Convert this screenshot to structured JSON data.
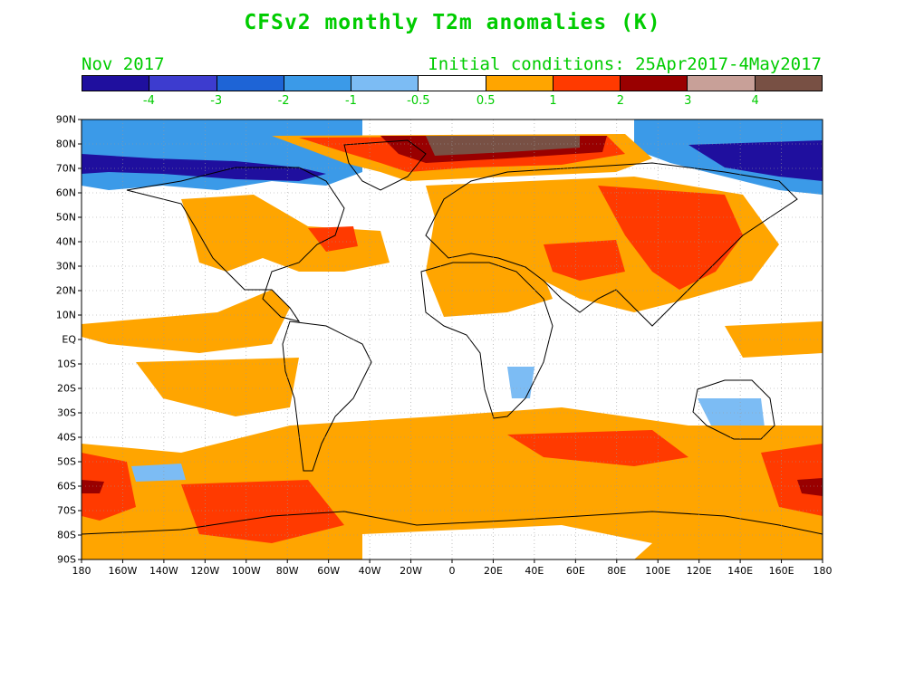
{
  "title": "CFSv2 monthly T2m anomalies (K)",
  "valid_month": "Nov 2017",
  "initial_conditions": "Initial conditions: 25Apr2017-4May2017",
  "colorbar": {
    "colors": [
      "#1f0f9e",
      "#3d3ccf",
      "#1e64d6",
      "#3b9ae8",
      "#7cbcf4",
      "#ffffff",
      "#ffa500",
      "#ff3a00",
      "#990000",
      "#c8a098",
      "#785044"
    ],
    "labels": [
      "-4",
      "-3",
      "-2",
      "-1",
      "-0.5",
      "0.5",
      "1",
      "2",
      "3",
      "4"
    ]
  },
  "lat_labels": [
    "90N",
    "80N",
    "70N",
    "60N",
    "50N",
    "40N",
    "30N",
    "20N",
    "10N",
    "EQ",
    "10S",
    "20S",
    "30S",
    "40S",
    "50S",
    "60S",
    "70S",
    "80S",
    "90S"
  ],
  "lon_labels": [
    "180",
    "160W",
    "140W",
    "120W",
    "100W",
    "80W",
    "60W",
    "40W",
    "20W",
    "0",
    "20E",
    "40E",
    "60E",
    "80E",
    "100E",
    "120E",
    "140E",
    "160E",
    "180"
  ],
  "regions": [
    {
      "name": "arctic-cold-pacific",
      "level": "-4"
    },
    {
      "name": "greenland-barents-warm",
      "level": "4"
    },
    {
      "name": "eurasia-warm",
      "level": "1"
    },
    {
      "name": "east-asia-warm",
      "level": "2"
    },
    {
      "name": "southern-ocean-warm",
      "level": "1"
    },
    {
      "name": "antarctic-edge-warm",
      "level": "2"
    }
  ]
}
